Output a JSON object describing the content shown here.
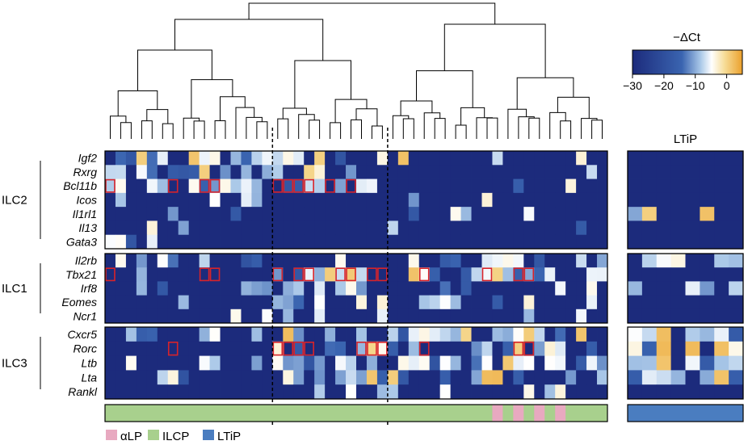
{
  "chart_data": {
    "type": "heatmap",
    "title": "",
    "colorbar": {
      "label": "−ΔCt",
      "ticks": [
        -30,
        -20,
        -10,
        0
      ],
      "tick_labels": [
        "−30",
        "−20",
        "−10",
        "0"
      ],
      "range": [
        -30,
        5
      ],
      "colors": [
        "#1c2b7c",
        "#3a64b0",
        "#aac8e8",
        "#ffffff",
        "#f6dc96",
        "#eba02c"
      ]
    },
    "panel_label_right": "LTiP",
    "gene_groups": [
      {
        "name": "ILC2",
        "genes": [
          "Igf2",
          "Rxrg",
          "Bcl11b",
          "Icos",
          "Il1rl1",
          "Il13",
          "Gata3"
        ]
      },
      {
        "name": "ILC1",
        "genes": [
          "Il2rb",
          "Tbx21",
          "Irf8",
          "Eomes",
          "Ncr1"
        ]
      },
      {
        "name": "ILC3",
        "genes": [
          "Cxcr5",
          "Rorc",
          "Ltb",
          "Lta",
          "Rankl"
        ]
      }
    ],
    "n_cells_main": 48,
    "n_cells_ltip": 8,
    "clusters": [
      16,
      11,
      21
    ],
    "cell_type_legend": [
      {
        "name": "αLP",
        "color": "#e8a9c0"
      },
      {
        "name": "ILCP",
        "color": "#a8d08d"
      },
      {
        "name": "LTiP",
        "color": "#4a7dc0"
      }
    ],
    "cell_type_bar_main": "ILCP with αLP cells at columns 37, 39, 41, 43 (0-indexed)",
    "alpha_lp_columns": [
      37,
      39,
      41,
      43
    ],
    "cell_type_bar_ltip": "LTiP",
    "highlighted_cells_note": "red-outlined cells mark ΔCt values detected in the corresponding signature gene",
    "colors": {
      "background_low": "#1c2b7c",
      "highlight_border": "#d8232a"
    }
  }
}
